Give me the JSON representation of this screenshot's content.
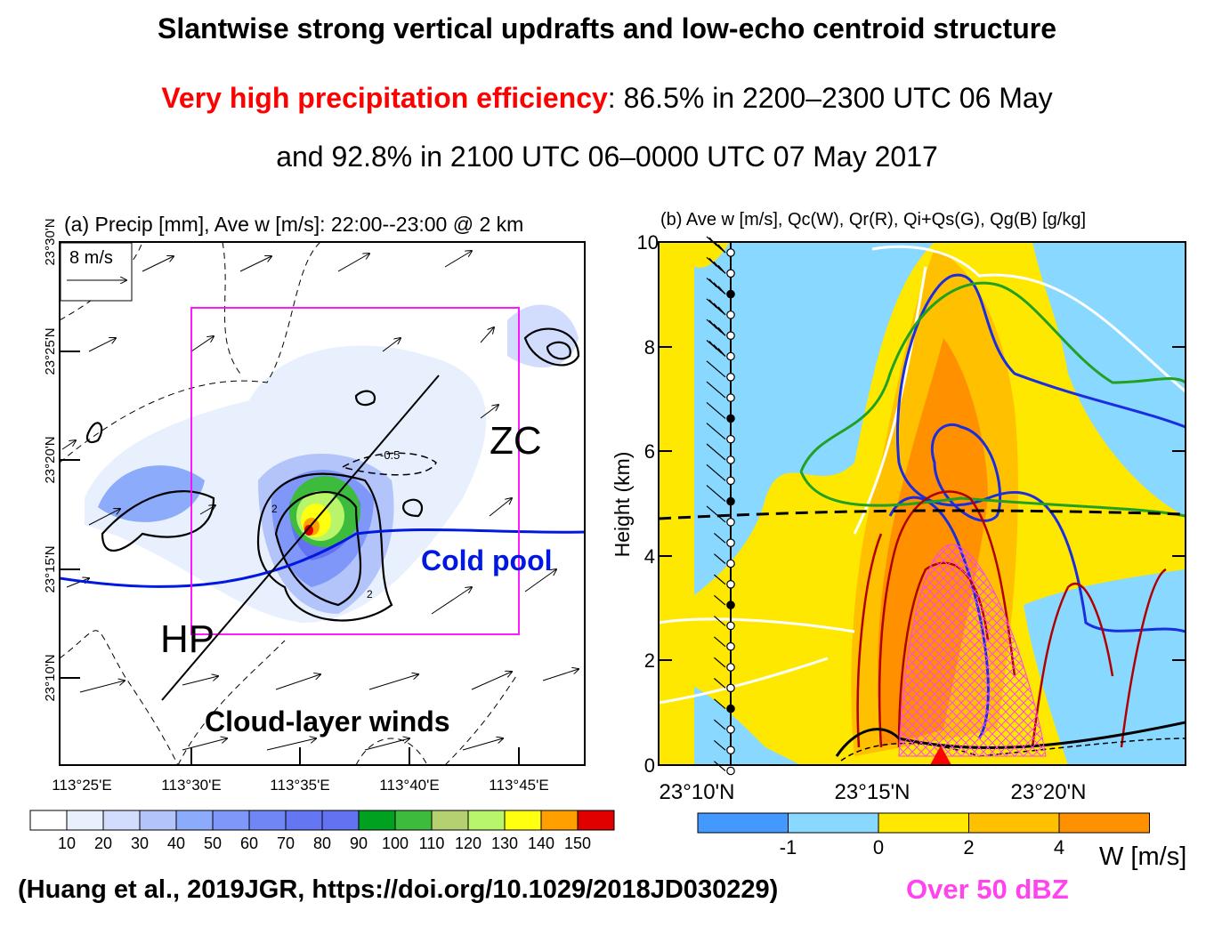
{
  "header": {
    "title": "Slantwise strong vertical updrafts and low-echo centroid structure",
    "line2_highlight": "Very high precipitation efficiency",
    "line2_rest": ": 86.5% in 2200–2300 UTC 06 May",
    "line3": "and 92.8% in 2100 UTC 06–0000 UTC 07 May 2017"
  },
  "footer": {
    "citation": "(Huang et al., 2019JGR, https://doi.org/10.1029/2018JD030229)",
    "legend_note": "Over 50 dBZ"
  },
  "colors": {
    "red": "#ff0000",
    "magenta": "#ff44ee",
    "cold_pool": "#0018e0"
  },
  "chart_data": [
    {
      "type": "heatmap",
      "title": "(a) Precip [mm], Ave w [m/s]: 22:00--23:00 @ 2 km",
      "x_ticks": [
        "113°25'E",
        "113°30'E",
        "113°35'E",
        "113°40'E",
        "113°45'E"
      ],
      "y_ticks": [
        "23°30'N",
        "23°25'N",
        "23°20'N",
        "23°15'N",
        "23°10'N"
      ],
      "reference_vector": "8 m/s",
      "contour_label": "-0.5",
      "contour_labels_small": [
        "2",
        "2"
      ],
      "annotations": [
        "ZC",
        "HP",
        "Cold pool",
        "Cloud-layer winds"
      ],
      "colorbar": {
        "levels": [
          "10",
          "20",
          "30",
          "40",
          "50",
          "60",
          "70",
          "80",
          "90",
          "100",
          "110",
          "120",
          "130",
          "140",
          "150"
        ],
        "colors": [
          "#ffffff",
          "#e8f0fe",
          "#d2dcfd",
          "#b3c4fb",
          "#8cabfa",
          "#7f97f8",
          "#7186f5",
          "#6476f2",
          "#6272f0",
          "#00a020",
          "#3cbb3c",
          "#b4d070",
          "#b8f56a",
          "#ffff10",
          "#ffa000",
          "#e00000"
        ]
      }
    },
    {
      "type": "heatmap",
      "title": "(b) Ave w [m/s], Qc(W), Qr(R), Qi+Qs(G), Qg(B) [g/kg]",
      "ylabel": "Height (km)",
      "ylim": [
        0,
        10
      ],
      "y_ticks": [
        "0",
        "2",
        "4",
        "6",
        "8",
        "10"
      ],
      "x_ticks": [
        "23°10'N",
        "23°15'N",
        "23°20'N"
      ],
      "colorbar": {
        "label": "W [m/s]",
        "levels": [
          "-1",
          "0",
          "2",
          "4"
        ],
        "colors": [
          "#4499ff",
          "#88d8ff",
          "#ffe800",
          "#ffc000",
          "#ff9000"
        ]
      }
    }
  ]
}
